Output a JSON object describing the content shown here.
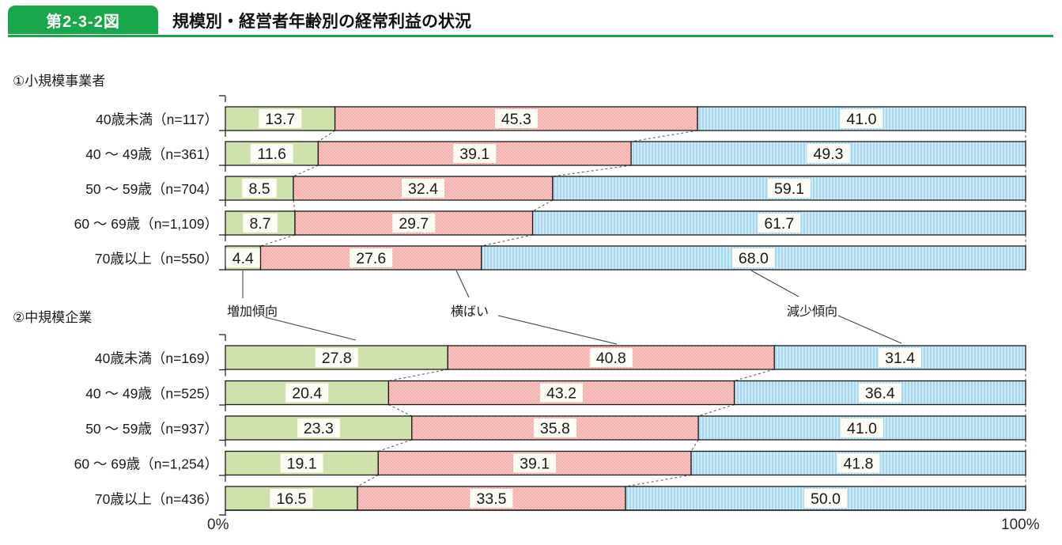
{
  "header": {
    "badge": "第2-3-2図",
    "title": "規模別・経営者年齢別の経常利益の状況",
    "accent_color": "#19a74c"
  },
  "legend": {
    "increase": "増加傾向",
    "flat": "横ばい",
    "decrease": "減少傾向"
  },
  "axis": {
    "left_label": "0%",
    "right_label": "100%"
  },
  "colors": {
    "increase_fill": "#cfe2ab",
    "flat_base": "#f9c5c1",
    "flat_dot": "#ec9d9b",
    "decrease_base": "#cdeaf6",
    "decrease_stripe": "#a5d8ee",
    "bar_border": "#1a1a1a",
    "value_label_bg": "#fdfdf6"
  },
  "chart_data": [
    {
      "type": "bar",
      "stacked": true,
      "orientation": "horizontal",
      "title": "①小規模事業者",
      "xlim": [
        0,
        100
      ],
      "categories": [
        "40歳未満（n=117）",
        "40 ～ 49歳（n=361）",
        "50 ～ 59歳（n=704）",
        "60 ～ 69歳（n=1,109）",
        "70歳以上（n=550）"
      ],
      "series": [
        {
          "name": "増加傾向",
          "values": [
            13.7,
            11.6,
            8.5,
            8.7,
            4.4
          ]
        },
        {
          "name": "横ばい",
          "values": [
            45.3,
            39.1,
            32.4,
            29.7,
            27.6
          ]
        },
        {
          "name": "減少傾向",
          "values": [
            41.0,
            49.3,
            59.1,
            61.7,
            68.0
          ]
        }
      ]
    },
    {
      "type": "bar",
      "stacked": true,
      "orientation": "horizontal",
      "title": "②中規模企業",
      "xlim": [
        0,
        100
      ],
      "categories": [
        "40歳未満（n=169）",
        "40 ～ 49歳（n=525）",
        "50 ～ 59歳（n=937）",
        "60 ～ 69歳（n=1,254）",
        "70歳以上（n=436）"
      ],
      "series": [
        {
          "name": "増加傾向",
          "values": [
            27.8,
            20.4,
            23.3,
            19.1,
            16.5
          ]
        },
        {
          "name": "横ばい",
          "values": [
            40.8,
            43.2,
            35.8,
            39.1,
            33.5
          ]
        },
        {
          "name": "減少傾向",
          "values": [
            31.4,
            36.4,
            41.0,
            41.8,
            50.0
          ]
        }
      ]
    }
  ]
}
